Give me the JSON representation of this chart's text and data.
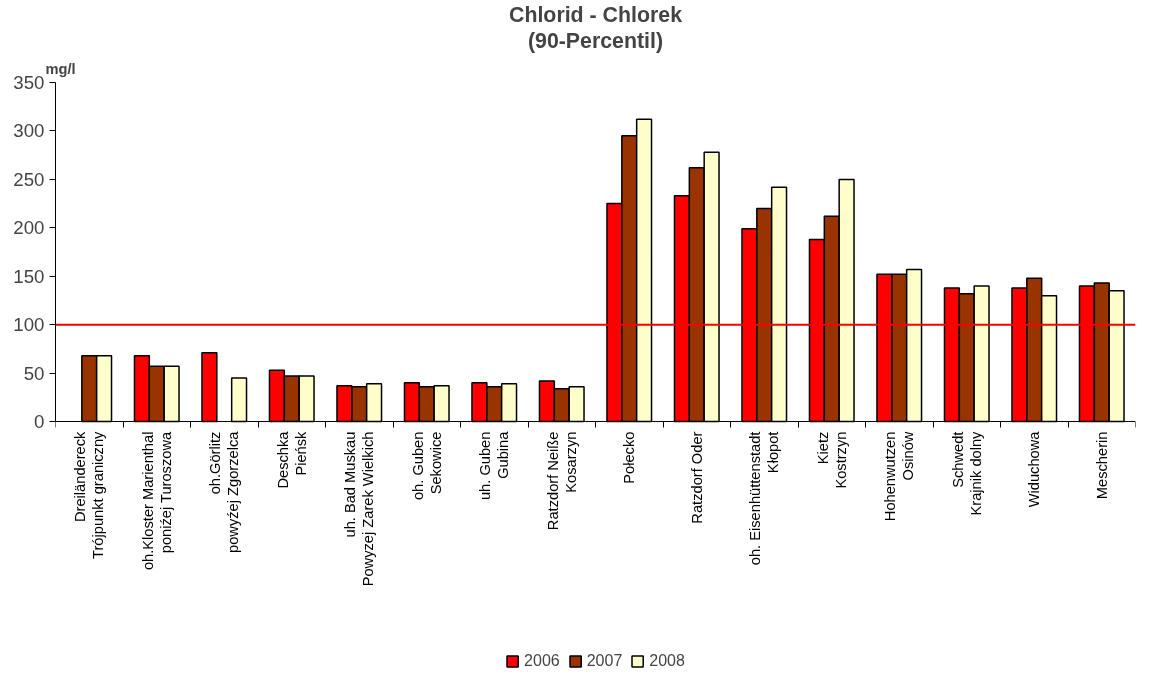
{
  "chart_data": {
    "type": "bar",
    "title": "Chlorid - Chlorek",
    "subtitle": "(90-Percentil)",
    "ylabel": "mg/l",
    "categories": [
      "Dreiländereck\nTrójpunkt graniczny",
      "oh.Kloster Marienthal\nponiźej Turoszowa",
      "oh.Görlitz\npowyźej Zgorzelca",
      "Deschka\nPieńsk",
      "uh. Bad Muskau\nPowyzej Zarek Wielkich",
      "oh. Guben\nSekowice",
      "uh. Guben\nGubina",
      "Ratzdorf Neiße\nKosarzyn",
      "Połecko",
      "Ratzdorf Oder",
      "oh. Eisenhüttenstadt\nKłopot",
      "Kietz\nKostrzyn",
      "Hohenwutzen\nOsinów",
      "Schwedt\nKrajnik dolny",
      "Widuchowa",
      "Mescherin"
    ],
    "series": [
      {
        "name": "2006",
        "color": "#ff0000",
        "values": [
          null,
          68,
          71,
          53,
          37,
          40,
          40,
          42,
          225,
          233,
          199,
          188,
          152,
          138,
          138,
          140
        ]
      },
      {
        "name": "2007",
        "color": "#993300",
        "values": [
          68,
          57,
          null,
          47,
          36,
          36,
          36,
          34,
          295,
          262,
          220,
          212,
          152,
          132,
          148,
          143
        ]
      },
      {
        "name": "2008",
        "color": "#ffffcc",
        "values": [
          68,
          57,
          45,
          47,
          39,
          37,
          39,
          36,
          312,
          278,
          242,
          250,
          157,
          140,
          130,
          135
        ]
      }
    ],
    "ylim": [
      0,
      350
    ],
    "yticks": [
      0,
      50,
      100,
      150,
      200,
      250,
      300,
      350
    ],
    "ref_lines": [
      {
        "axis": "y",
        "value": 100,
        "color": "#ff0000"
      }
    ],
    "grid": false,
    "legend": "bottom"
  }
}
